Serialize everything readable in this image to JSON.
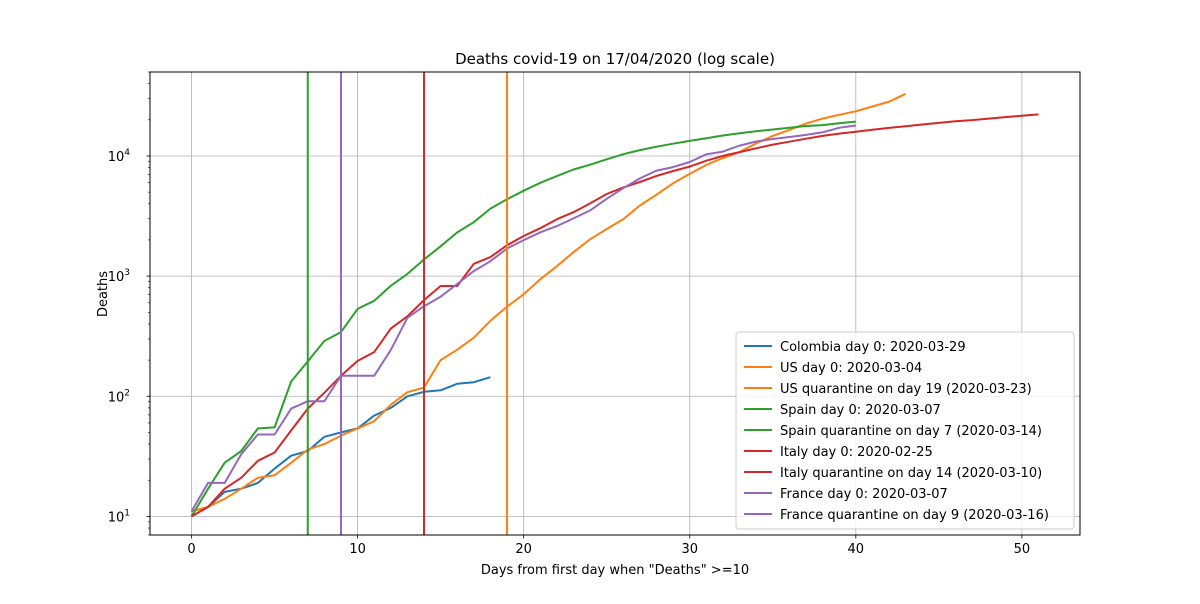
{
  "chart_data": {
    "type": "line",
    "title": "Deaths covid-19 on 17/04/2020  (log scale)",
    "xlabel": "Days from first day when \"Deaths\" >=10",
    "ylabel": "Deaths",
    "xlim": [
      -2.5,
      53.5
    ],
    "ylim": [
      7,
      50000
    ],
    "yscale": "log",
    "grid": true,
    "legend_position": "lower-right",
    "x_ticks": [
      0,
      10,
      20,
      30,
      40,
      50
    ],
    "x_tick_labels": [
      "0",
      "10",
      "20",
      "30",
      "40",
      "50"
    ],
    "y_ticks": [
      10,
      100,
      1000,
      10000
    ],
    "y_tick_labels": [
      {
        "base": "10",
        "exp": "1"
      },
      {
        "base": "10",
        "exp": "2"
      },
      {
        "base": "10",
        "exp": "3"
      },
      {
        "base": "10",
        "exp": "4"
      }
    ],
    "series": [
      {
        "name": "Colombia day 0: 2020-03-29",
        "color": "#1f77b4",
        "x": [
          0,
          1,
          2,
          3,
          4,
          5,
          6,
          7,
          8,
          9,
          10,
          11,
          12,
          13,
          14,
          15,
          16,
          17,
          18
        ],
        "y": [
          10,
          12,
          16,
          17,
          19,
          25,
          32,
          35,
          46,
          50,
          54,
          69,
          80,
          100,
          109,
          112,
          127,
          131,
          144
        ]
      },
      {
        "name": "US day 0: 2020-03-04",
        "color": "#ff7f0e",
        "x": [
          0,
          1,
          2,
          3,
          4,
          5,
          6,
          7,
          8,
          9,
          10,
          11,
          12,
          13,
          14,
          15,
          16,
          17,
          18,
          19,
          20,
          21,
          22,
          23,
          24,
          25,
          26,
          27,
          28,
          29,
          30,
          31,
          32,
          33,
          34,
          35,
          36,
          37,
          38,
          39,
          40,
          41,
          42,
          43
        ],
        "y": [
          11,
          12,
          14,
          17,
          21,
          22,
          28,
          36,
          40,
          47,
          54,
          62,
          85,
          108,
          118,
          200,
          244,
          307,
          425,
          557,
          706,
          942,
          1209,
          1581,
          2026,
          2467,
          2978,
          3873,
          4757,
          5926,
          7087,
          8407,
          9619,
          10783,
          12722,
          14695,
          16478,
          18586,
          20463,
          22020,
          23529,
          25831,
          28325,
          32916
        ]
      },
      {
        "name": "Spain day 0: 2020-03-07",
        "color": "#2ca02c",
        "x": [
          0,
          1,
          2,
          3,
          4,
          5,
          6,
          7,
          8,
          9,
          10,
          11,
          12,
          13,
          14,
          15,
          16,
          17,
          18,
          19,
          20,
          21,
          22,
          23,
          24,
          25,
          26,
          27,
          28,
          29,
          30,
          31,
          32,
          33,
          34,
          35,
          36,
          37,
          38,
          39,
          40
        ],
        "y": [
          10,
          17,
          28,
          35,
          54,
          55,
          133,
          195,
          289,
          342,
          533,
          623,
          830,
          1043,
          1375,
          1772,
          2311,
          2808,
          3647,
          4365,
          5138,
          5982,
          6803,
          7716,
          8464,
          9387,
          10348,
          11198,
          11947,
          12641,
          13341,
          14045,
          14792,
          15447,
          16081,
          16606,
          17209,
          17756,
          18056,
          18708,
          19315
        ]
      },
      {
        "name": "Italy day 0: 2020-02-25",
        "color": "#d62728",
        "x": [
          0,
          1,
          2,
          3,
          4,
          5,
          6,
          7,
          8,
          9,
          10,
          11,
          12,
          13,
          14,
          15,
          16,
          17,
          18,
          19,
          20,
          21,
          22,
          23,
          24,
          25,
          26,
          27,
          28,
          29,
          30,
          31,
          32,
          33,
          34,
          35,
          36,
          37,
          38,
          39,
          40,
          41,
          42,
          43,
          44,
          45,
          46,
          47,
          48,
          49,
          50,
          51
        ],
        "y": [
          10,
          12,
          17,
          21,
          29,
          34,
          52,
          79,
          107,
          148,
          197,
          233,
          366,
          463,
          631,
          827,
          827,
          1266,
          1441,
          1809,
          2158,
          2503,
          2978,
          3405,
          4032,
          4825,
          5476,
          6077,
          6820,
          7503,
          8165,
          9134,
          10023,
          10779,
          11591,
          12428,
          13155,
          13915,
          14681,
          15362,
          15887,
          16523,
          17127,
          17669,
          18279,
          18849,
          19468,
          19899,
          20465,
          21067,
          21645,
          22170
        ]
      },
      {
        "name": "France day 0: 2020-03-07",
        "color": "#9467bd",
        "x": [
          0,
          1,
          2,
          3,
          4,
          5,
          6,
          7,
          8,
          9,
          10,
          11,
          12,
          13,
          14,
          15,
          16,
          17,
          18,
          19,
          20,
          21,
          22,
          23,
          24,
          25,
          26,
          27,
          28,
          29,
          30,
          31,
          32,
          33,
          34,
          35,
          36,
          37,
          38,
          39,
          40
        ],
        "y": [
          11,
          19,
          19,
          33,
          48,
          48,
          79,
          91,
          91,
          148,
          148,
          148,
          243,
          450,
          562,
          674,
          860,
          1100,
          1331,
          1696,
          1995,
          2314,
          2606,
          3024,
          3523,
          4403,
          5387,
          6507,
          7560,
          8078,
          8911,
          10328,
          10869,
          12210,
          13197,
          13832,
          14393,
          14967,
          15729,
          17167,
          17920
        ]
      }
    ],
    "quarantine_lines": [
      {
        "name": "US quarantine on day 19 (2020-03-23)",
        "x": 19,
        "color": "#ff7f0e"
      },
      {
        "name": "Spain quarantine on day 7 (2020-03-14)",
        "x": 7,
        "color": "#2ca02c"
      },
      {
        "name": "Italy quarantine on day 14 (2020-03-10)",
        "x": 14,
        "color": "#d62728"
      },
      {
        "name": "France quarantine on day 9 (2020-03-16)",
        "x": 9,
        "color": "#9467bd"
      }
    ],
    "legend_entries": [
      {
        "label": "Colombia day 0: 2020-03-29",
        "color": "#1f77b4"
      },
      {
        "label": "US day 0: 2020-03-04",
        "color": "#ff7f0e"
      },
      {
        "label": "US quarantine on day 19 (2020-03-23)",
        "color": "#ff7f0e"
      },
      {
        "label": "Spain day 0: 2020-03-07",
        "color": "#2ca02c"
      },
      {
        "label": "Spain quarantine on day 7 (2020-03-14)",
        "color": "#2ca02c"
      },
      {
        "label": "Italy day 0: 2020-02-25",
        "color": "#d62728"
      },
      {
        "label": "Italy quarantine on day 14 (2020-03-10)",
        "color": "#d62728"
      },
      {
        "label": "France day 0: 2020-03-07",
        "color": "#9467bd"
      },
      {
        "label": "France quarantine on day 9 (2020-03-16)",
        "color": "#9467bd"
      }
    ]
  }
}
